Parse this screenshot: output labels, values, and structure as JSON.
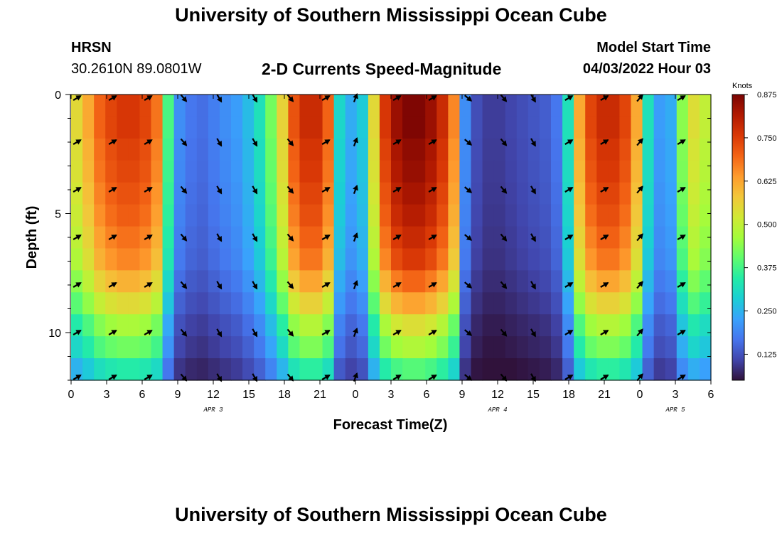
{
  "header": {
    "title": "University of Southern Mississippi Ocean Cube",
    "station_name": "HRSN",
    "station_coords": "30.2610N  89.0801W",
    "subtitle": "2-D Currents Speed-Magnitude",
    "model_label": "Model Start Time",
    "model_time": "04/03/2022 Hour 03"
  },
  "footer": {
    "title": "University of Southern Mississippi Ocean Cube"
  },
  "chart_data": {
    "type": "heatmap",
    "title": "2-D Currents Speed-Magnitude",
    "xlabel": "Forecast Time(Z)",
    "ylabel": "Depth (ft)",
    "x_range_hours": [
      0,
      54
    ],
    "ylim": [
      0,
      12
    ],
    "y_ticks": [
      0,
      5,
      10
    ],
    "x_ticks": [
      "0",
      "3",
      "6",
      "9",
      "12",
      "15",
      "18",
      "21",
      "0",
      "3",
      "6",
      "9",
      "12",
      "15",
      "18",
      "21",
      "0",
      "3",
      "6"
    ],
    "date_labels": [
      {
        "label": "APR 3",
        "hour": 12
      },
      {
        "label": "APR 4",
        "hour": 36
      },
      {
        "label": "APR 5",
        "hour": 51
      }
    ],
    "colorbar": {
      "unit": "Knots",
      "min": 0.05,
      "max": 0.875,
      "ticks": [
        "0.875",
        "0.750",
        "0.625",
        "0.500",
        "0.375",
        "0.250",
        "0.125"
      ],
      "colors": [
        "#30123b",
        "#4145ab",
        "#4675ed",
        "#39a2fc",
        "#1bcfd4",
        "#24eca6",
        "#61fc6c",
        "#a4fc3b",
        "#d1e834",
        "#f3c63a",
        "#fe9b2d",
        "#f36315",
        "#d93806",
        "#b11901",
        "#7a0403"
      ]
    },
    "speed_profile_hourly_top": [
      0.55,
      0.62,
      0.7,
      0.74,
      0.76,
      0.76,
      0.74,
      0.68,
      0.38,
      0.2,
      0.17,
      0.16,
      0.18,
      0.2,
      0.22,
      0.26,
      0.32,
      0.42,
      0.56,
      0.72,
      0.78,
      0.78,
      0.7,
      0.3,
      0.24,
      0.28,
      0.55,
      0.76,
      0.84,
      0.87,
      0.87,
      0.84,
      0.78,
      0.66,
      0.2,
      0.12,
      0.1,
      0.1,
      0.11,
      0.12,
      0.13,
      0.14,
      0.17,
      0.32,
      0.62,
      0.74,
      0.78,
      0.78,
      0.74,
      0.62,
      0.32,
      0.22,
      0.24,
      0.44,
      0.54,
      0.5
    ],
    "depth_factors": [
      1.0,
      1.0,
      0.98,
      0.97,
      0.95,
      0.93,
      0.9,
      0.87,
      0.8,
      0.72,
      0.62,
      0.55,
      0.45
    ],
    "vector_times_hours": [
      0.5,
      3.5,
      6.5,
      9.5,
      12.5,
      15.5,
      18.5,
      21.5,
      24,
      27.5,
      30.5,
      33.5,
      36.5,
      39,
      42,
      45,
      48,
      51.5
    ],
    "vector_depths_ft": [
      0,
      2,
      4,
      6,
      8,
      10,
      12
    ],
    "vector_directions_deg": [
      60,
      60,
      60,
      140,
      150,
      150,
      140,
      60,
      20,
      60,
      60,
      130,
      140,
      150,
      60,
      60,
      40,
      60
    ]
  }
}
